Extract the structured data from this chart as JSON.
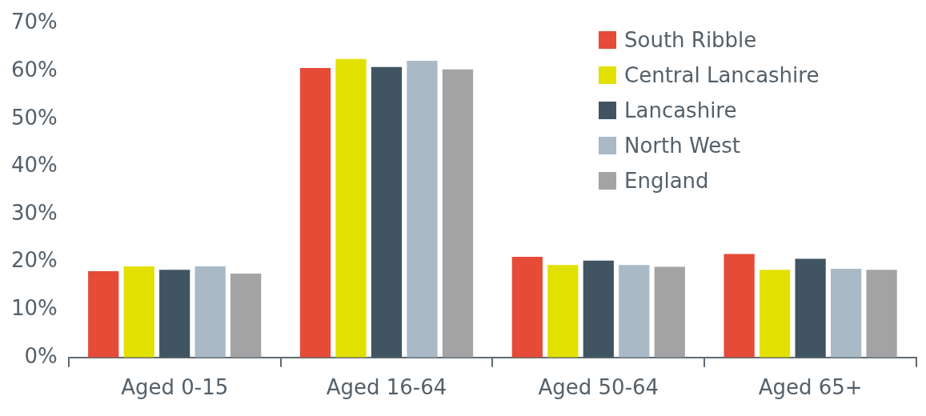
{
  "chart_data": {
    "type": "bar",
    "categories": [
      "Aged 0-15",
      "Aged 16-64",
      "Aged 50-64",
      "Aged 65+"
    ],
    "series": [
      {
        "name": "South Ribble",
        "color": "#e64b37",
        "values": [
          18.1,
          60.7,
          21.1,
          21.7
        ]
      },
      {
        "name": "Central Lancashire",
        "color": "#e2e000",
        "values": [
          19.1,
          62.6,
          19.4,
          18.4
        ]
      },
      {
        "name": "Lancashire",
        "color": "#415462",
        "values": [
          18.4,
          60.9,
          20.3,
          20.7
        ]
      },
      {
        "name": "North West",
        "color": "#a9b9c6",
        "values": [
          19.1,
          62.2,
          19.4,
          18.6
        ]
      },
      {
        "name": "England",
        "color": "#a3a3a3",
        "values": [
          17.6,
          60.4,
          19.0,
          18.4
        ]
      }
    ],
    "ylim": [
      0,
      70
    ],
    "yticks": [
      {
        "value": 0,
        "label": "0%"
      },
      {
        "value": 10,
        "label": "10%"
      },
      {
        "value": 20,
        "label": "20%"
      },
      {
        "value": 30,
        "label": "30%"
      },
      {
        "value": 40,
        "label": "40%"
      },
      {
        "value": 50,
        "label": "50%"
      },
      {
        "value": 60,
        "label": "60%"
      },
      {
        "value": 70,
        "label": "70%"
      }
    ],
    "grid": false,
    "legend": "top right"
  }
}
